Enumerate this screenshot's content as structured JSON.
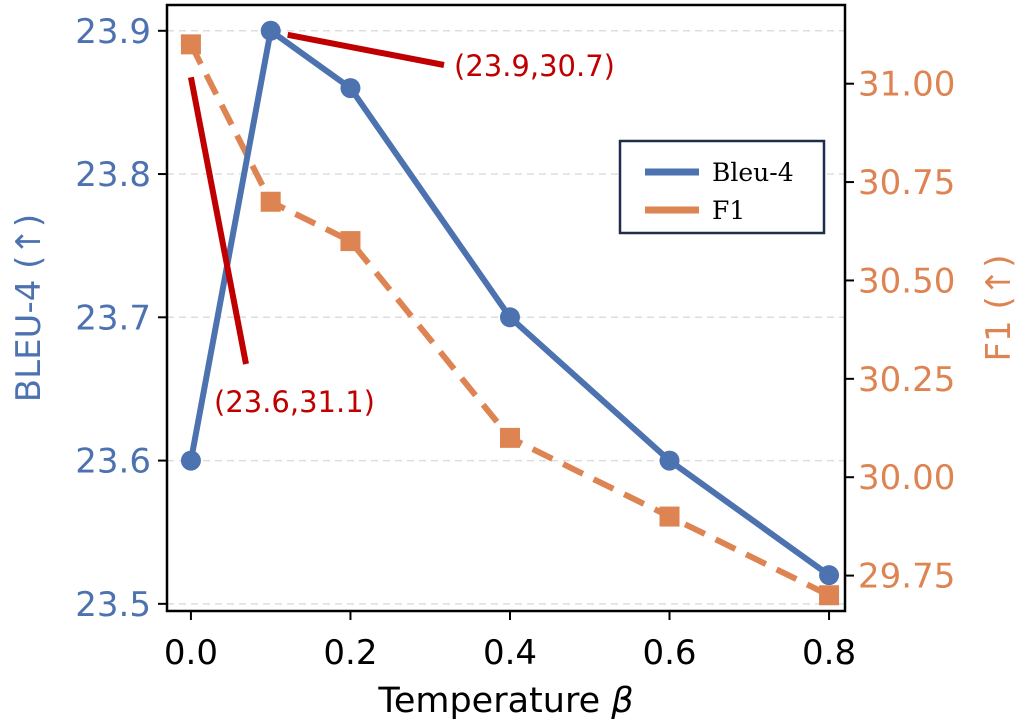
{
  "chart_data": {
    "type": "line",
    "xlabel": "Temperature",
    "xlabel_symbol": "β",
    "xlim": [
      -0.03,
      0.82
    ],
    "x_ticks": [
      "0.0",
      "0.2",
      "0.4",
      "0.6",
      "0.8"
    ],
    "x": [
      0.0,
      0.1,
      0.2,
      0.4,
      0.6,
      0.8
    ],
    "left_axis": {
      "label": "BLEU-4 (↑)",
      "ylim": [
        23.495,
        23.918
      ],
      "ticks": [
        "23.5",
        "23.6",
        "23.7",
        "23.8",
        "23.9"
      ],
      "color": "#4c72b0"
    },
    "right_axis": {
      "label": "F1 (↑)",
      "ylim": [
        29.66,
        31.2
      ],
      "ticks": [
        "29.75",
        "30.00",
        "30.25",
        "30.50",
        "30.75",
        "31.00"
      ],
      "color": "#dd8452"
    },
    "series": [
      {
        "name": "Bleu-4",
        "axis": "left",
        "marker": "circle",
        "style": "solid",
        "color": "#4c72b0",
        "values": [
          23.6,
          23.9,
          23.86,
          23.7,
          23.6,
          23.52
        ]
      },
      {
        "name": "F1",
        "axis": "right",
        "marker": "square",
        "style": "dashed",
        "color": "#dd8452",
        "values": [
          31.1,
          30.7,
          30.6,
          30.1,
          29.9,
          29.7
        ]
      }
    ],
    "legend": {
      "position": "center-right",
      "entries": [
        "Bleu-4",
        "F1"
      ]
    },
    "grid": {
      "y": true,
      "style": "dashed"
    },
    "annotations": [
      {
        "text": "(23.6,31.1)",
        "color": "#c00000"
      },
      {
        "text": "(23.9,30.7)",
        "color": "#c00000"
      }
    ]
  }
}
